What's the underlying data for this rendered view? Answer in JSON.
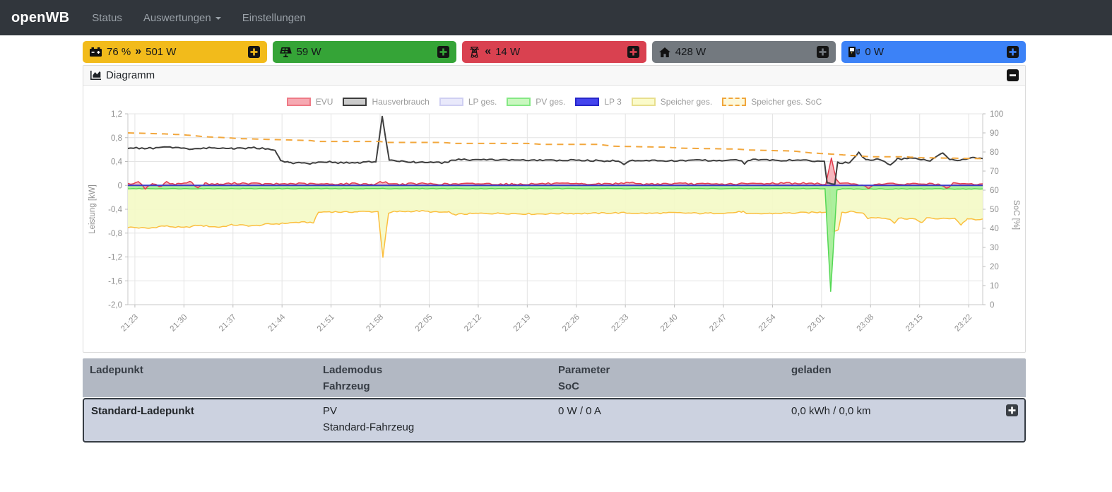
{
  "navbar": {
    "brand": "openWB",
    "items": [
      {
        "label": "Status",
        "caret": false
      },
      {
        "label": "Auswertungen",
        "caret": true
      },
      {
        "label": "Einstellungen",
        "caret": false
      }
    ]
  },
  "badges": [
    {
      "id": "speicher",
      "color": "#f2bb1b",
      "icon": "car-battery-icon",
      "soc": "76 %",
      "arrow": "angle-double-right-icon",
      "value": "501 W"
    },
    {
      "id": "pv",
      "color": "#35a437",
      "icon": "solar-panel-icon",
      "soc": "",
      "arrow": "",
      "value": "59 W"
    },
    {
      "id": "evu",
      "color": "#d94150",
      "icon": "transmission-tower-icon",
      "soc": "",
      "arrow": "angle-double-left-icon",
      "value": "14 W"
    },
    {
      "id": "haus",
      "color": "#73797f",
      "icon": "home-icon",
      "soc": "",
      "arrow": "",
      "value": "428 W"
    },
    {
      "id": "ladepunkt",
      "color": "#3c82f7",
      "icon": "charging-station-icon",
      "soc": "",
      "arrow": "",
      "value": "0 W"
    }
  ],
  "panel": {
    "title": "Diagramm"
  },
  "chart_data": {
    "type": "line",
    "x_ticks": [
      "21:23",
      "21:30",
      "21:37",
      "21:44",
      "21:51",
      "21:58",
      "22:05",
      "22:12",
      "22:19",
      "22:26",
      "22:33",
      "22:40",
      "22:47",
      "22:54",
      "23:01",
      "23:08",
      "23:15",
      "23:22"
    ],
    "x_tick_start_minute": 1,
    "x_tick_step_minute": 7,
    "x_range_minutes": [
      0,
      122
    ],
    "ylabel_left": "Leistung [kW]",
    "ylabel_right": "SoC [%]",
    "ylim_left": [
      -2.0,
      1.2
    ],
    "ytick_labels_left": [
      "1,2",
      "0,8",
      "0,4",
      "0",
      "-0,4",
      "-0,8",
      "-1,2",
      "-1,6",
      "-2,0"
    ],
    "ylim_right": [
      0,
      100
    ],
    "ytick_labels_right": [
      "100",
      "90",
      "80",
      "70",
      "60",
      "50",
      "40",
      "30",
      "20",
      "10",
      "0"
    ],
    "legend": [
      {
        "label": "EVU",
        "fill": "#f6a9b2",
        "border": "#ee7a86",
        "dashed": false
      },
      {
        "label": "Hausverbrauch",
        "fill": "#cbcbcb",
        "border": "#3c3c3c",
        "dashed": false
      },
      {
        "label": "LP ges.",
        "fill": "#e9e9fb",
        "border": "#cfcff2",
        "dashed": false
      },
      {
        "label": "PV ges.",
        "fill": "#c9f7bf",
        "border": "#85e885",
        "dashed": false
      },
      {
        "label": "LP 3",
        "fill": "#4444ee",
        "border": "#2727c9",
        "dashed": false
      },
      {
        "label": "Speicher ges.",
        "fill": "#fbfbca",
        "border": "#e8df8e",
        "dashed": false
      },
      {
        "label": "Speicher ges. SoC",
        "fill": "#fdf8da",
        "border": "#f0a63c",
        "dashed": true
      }
    ],
    "series": [
      {
        "name": "Speicher ges.",
        "axis": "left",
        "color": "#fbbf3f",
        "width": 1.5,
        "fill": "#f4f9c5",
        "fill_opacity": 0.9,
        "noise": 0.012,
        "points": [
          [
            0,
            -0.7
          ],
          [
            3,
            -0.72
          ],
          [
            5,
            -0.68
          ],
          [
            8,
            -0.71
          ],
          [
            10,
            -0.67
          ],
          [
            13,
            -0.7
          ],
          [
            15,
            -0.66
          ],
          [
            18,
            -0.68
          ],
          [
            20,
            -0.65
          ],
          [
            22,
            -0.64
          ],
          [
            24,
            -0.62
          ],
          [
            26.5,
            -0.62
          ],
          [
            27.2,
            -0.45
          ],
          [
            29,
            -0.44
          ],
          [
            31,
            -0.45
          ],
          [
            33,
            -0.44
          ],
          [
            35.7,
            -0.44
          ],
          [
            36.4,
            -1.2
          ],
          [
            37.2,
            -0.47
          ],
          [
            38,
            -0.44
          ],
          [
            42,
            -0.43
          ],
          [
            44,
            -0.45
          ],
          [
            45.8,
            -0.45
          ],
          [
            46.3,
            -0.49
          ],
          [
            50,
            -0.47
          ],
          [
            54,
            -0.47
          ],
          [
            58,
            -0.48
          ],
          [
            62,
            -0.47
          ],
          [
            66,
            -0.47
          ],
          [
            70,
            -0.46
          ],
          [
            74,
            -0.47
          ],
          [
            78,
            -0.46
          ],
          [
            82,
            -0.47
          ],
          [
            86,
            -0.46
          ],
          [
            87.8,
            -0.44
          ],
          [
            88.3,
            -0.48
          ],
          [
            92,
            -0.47
          ],
          [
            96,
            -0.46
          ],
          [
            99,
            -0.45
          ],
          [
            99.8,
            -0.44
          ],
          [
            100.2,
            -0.05
          ],
          [
            100.6,
            -0.78
          ],
          [
            101.4,
            -0.74
          ],
          [
            101.9,
            -0.45
          ],
          [
            103.5,
            -0.44
          ],
          [
            105,
            -0.47
          ],
          [
            105.6,
            -0.55
          ],
          [
            107,
            -0.54
          ],
          [
            108.8,
            -0.56
          ],
          [
            109.4,
            -0.63
          ],
          [
            110,
            -0.55
          ],
          [
            112,
            -0.56
          ],
          [
            113.4,
            -0.62
          ],
          [
            114,
            -0.55
          ],
          [
            116,
            -0.56
          ],
          [
            118,
            -0.55
          ],
          [
            118.9,
            -0.66
          ],
          [
            119.8,
            -0.56
          ],
          [
            121,
            -0.58
          ],
          [
            122,
            -0.57
          ]
        ]
      },
      {
        "name": "PV ges.",
        "axis": "left",
        "color": "#55d855",
        "width": 1.5,
        "fill": "#a8ee9a",
        "fill_opacity": 0.95,
        "noise": 0.005,
        "points": [
          [
            0,
            -0.055
          ],
          [
            99.5,
            -0.055
          ],
          [
            100.3,
            -1.78
          ],
          [
            101.2,
            -0.08
          ],
          [
            102,
            -0.06
          ],
          [
            122,
            -0.06
          ]
        ]
      },
      {
        "name": "EVU",
        "axis": "left",
        "color": "#e23d4e",
        "width": 1.5,
        "fill": "#f4a9b2",
        "fill_opacity": 0.85,
        "noise": 0.015,
        "points": [
          [
            0,
            0.02
          ],
          [
            1.5,
            0.06
          ],
          [
            2.5,
            -0.05
          ],
          [
            3.5,
            0.04
          ],
          [
            4.5,
            -0.03
          ],
          [
            5.5,
            0.05
          ],
          [
            7,
            0.02
          ],
          [
            9,
            0.06
          ],
          [
            10,
            -0.04
          ],
          [
            11,
            0.03
          ],
          [
            13,
            0.02
          ],
          [
            16,
            0.04
          ],
          [
            20,
            0.02
          ],
          [
            24,
            0.03
          ],
          [
            28,
            0.02
          ],
          [
            32,
            0.03
          ],
          [
            35,
            0.02
          ],
          [
            36.3,
            0.06
          ],
          [
            38,
            0.02
          ],
          [
            42,
            0.03
          ],
          [
            46,
            0.02
          ],
          [
            50,
            0.03
          ],
          [
            55,
            0.02
          ],
          [
            60,
            0.03
          ],
          [
            65,
            0.02
          ],
          [
            70,
            0.03
          ],
          [
            71.5,
            0.06
          ],
          [
            72.5,
            0.02
          ],
          [
            78,
            0.03
          ],
          [
            84,
            0.02
          ],
          [
            90,
            0.03
          ],
          [
            94,
            0.04
          ],
          [
            98,
            0.03
          ],
          [
            99.6,
            0.02
          ],
          [
            100.4,
            0.45
          ],
          [
            101.1,
            0.12
          ],
          [
            101.6,
            0.03
          ],
          [
            104,
            0.03
          ],
          [
            105.8,
            -0.05
          ],
          [
            106.6,
            0.03
          ],
          [
            110,
            0.02
          ],
          [
            113,
            0.03
          ],
          [
            115.8,
            0.02
          ],
          [
            116.8,
            -0.06
          ],
          [
            117.8,
            0.03
          ],
          [
            120,
            0.02
          ],
          [
            122,
            0.02
          ]
        ]
      },
      {
        "name": "LP ges.",
        "axis": "left",
        "color": "#d9d9f8",
        "width": 1.5,
        "noise": 0,
        "points": [
          [
            0,
            0
          ],
          [
            122,
            0
          ]
        ]
      },
      {
        "name": "LP 3",
        "axis": "left",
        "color": "#3a3ac8",
        "width": 2,
        "noise": 0,
        "points": [
          [
            0,
            0
          ],
          [
            122,
            0
          ]
        ]
      },
      {
        "name": "Hausverbrauch",
        "axis": "left",
        "color": "#3f3f3f",
        "width": 2,
        "noise": 0.013,
        "points": [
          [
            0,
            0.63
          ],
          [
            3,
            0.62
          ],
          [
            6,
            0.64
          ],
          [
            9,
            0.61
          ],
          [
            12,
            0.63
          ],
          [
            15,
            0.62
          ],
          [
            18,
            0.63
          ],
          [
            21,
            0.6
          ],
          [
            21.8,
            0.42
          ],
          [
            23,
            0.38
          ],
          [
            26,
            0.37
          ],
          [
            28,
            0.4
          ],
          [
            30,
            0.38
          ],
          [
            33,
            0.38
          ],
          [
            35.4,
            0.4
          ],
          [
            36.3,
            1.15
          ],
          [
            37.3,
            0.42
          ],
          [
            39,
            0.4
          ],
          [
            41,
            0.39
          ],
          [
            44,
            0.38
          ],
          [
            45.8,
            0.38
          ],
          [
            46.2,
            0.43
          ],
          [
            52,
            0.43
          ],
          [
            58,
            0.42
          ],
          [
            64,
            0.42
          ],
          [
            70,
            0.41
          ],
          [
            70.8,
            0.36
          ],
          [
            71.6,
            0.42
          ],
          [
            76,
            0.41
          ],
          [
            82,
            0.42
          ],
          [
            87.6,
            0.42
          ],
          [
            88,
            0.37
          ],
          [
            88.6,
            0.43
          ],
          [
            94,
            0.42
          ],
          [
            99.4,
            0.41
          ],
          [
            99.8,
            0.03
          ],
          [
            100.9,
            0.03
          ],
          [
            101.3,
            0.38
          ],
          [
            103,
            0.38
          ],
          [
            104.3,
            0.55
          ],
          [
            105.3,
            0.42
          ],
          [
            107,
            0.44
          ],
          [
            108.8,
            0.35
          ],
          [
            109.8,
            0.44
          ],
          [
            112,
            0.45
          ],
          [
            114.5,
            0.42
          ],
          [
            116.3,
            0.55
          ],
          [
            117.3,
            0.44
          ],
          [
            119,
            0.42
          ],
          [
            120.5,
            0.47
          ],
          [
            122,
            0.45
          ]
        ]
      },
      {
        "name": "Speicher ges. SoC",
        "axis": "right",
        "color": "#f2a73d",
        "width": 2,
        "dash": "9,7",
        "noise": 0,
        "points": [
          [
            0,
            90
          ],
          [
            5,
            89.5
          ],
          [
            8,
            89
          ],
          [
            11,
            88
          ],
          [
            14,
            87.5
          ],
          [
            16,
            87
          ],
          [
            21,
            86.5
          ],
          [
            26,
            86
          ],
          [
            27,
            85.5
          ],
          [
            36,
            85.5
          ],
          [
            37,
            85
          ],
          [
            45,
            85
          ],
          [
            46.5,
            84.5
          ],
          [
            57,
            84.5
          ],
          [
            59,
            84
          ],
          [
            67,
            84
          ],
          [
            69.5,
            83
          ],
          [
            77,
            82.5
          ],
          [
            79,
            82
          ],
          [
            87,
            81.5
          ],
          [
            89,
            81
          ],
          [
            95,
            80.5
          ],
          [
            97.5,
            79.5
          ],
          [
            100,
            79
          ],
          [
            102,
            78.5
          ],
          [
            104,
            78
          ],
          [
            106,
            77.5
          ],
          [
            111,
            77.5
          ],
          [
            113,
            77
          ],
          [
            117,
            76.8
          ],
          [
            122,
            76.5
          ]
        ]
      }
    ]
  },
  "table": {
    "headers": [
      {
        "lines": [
          "Ladepunkt"
        ]
      },
      {
        "lines": [
          "Lademodus",
          "Fahrzeug"
        ]
      },
      {
        "lines": [
          "Parameter",
          "SoC"
        ]
      },
      {
        "lines": [
          "geladen"
        ]
      }
    ],
    "row": {
      "ladepunkt": "Standard-Ladepunkt",
      "lademodus": [
        "PV",
        "Standard-Fahrzeug"
      ],
      "parameter": "0 W / 0 A",
      "geladen": "0,0 kWh / 0,0 km"
    }
  }
}
